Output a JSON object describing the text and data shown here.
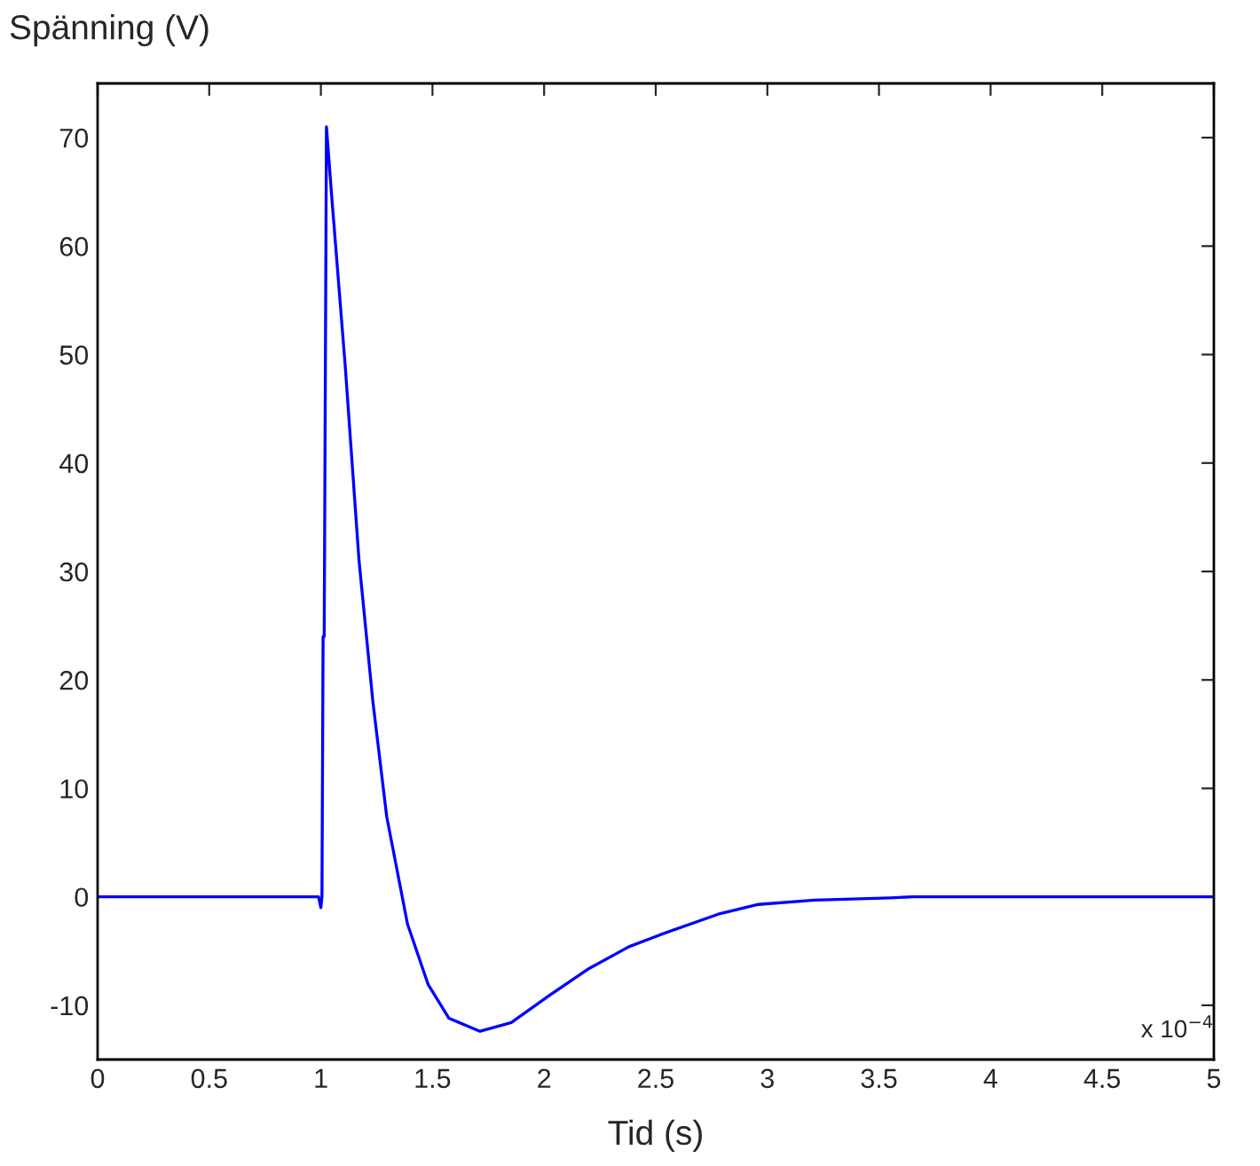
{
  "chart_data": {
    "type": "line",
    "ylabel": "Spänning (V)",
    "xlabel": "Tid (s)",
    "annotations": [
      "x 10$^{−4}$"
    ],
    "xlim": [
      0,
      5
    ],
    "ylim": [
      -15,
      75
    ],
    "xticks": [
      0,
      0.5,
      1,
      1.5,
      2,
      2.5,
      3,
      3.5,
      4,
      4.5,
      5
    ],
    "yticks": [
      -10,
      0,
      10,
      20,
      30,
      40,
      50,
      60,
      70
    ],
    "grid": false,
    "legend": false,
    "marker": "none",
    "line_style": "solid",
    "series": [
      {
        "color": "#0000ff",
        "x": [
          0,
          0.99,
          1.0,
          1.005,
          1.01,
          1.015,
          1.025,
          1.047,
          1.109,
          1.171,
          1.233,
          1.295,
          1.388,
          1.481,
          1.574,
          1.713,
          1.853,
          2.023,
          2.194,
          2.38,
          2.52,
          2.78,
          2.96,
          3.21,
          3.55,
          3.65,
          5
        ],
        "values": [
          0,
          0,
          -1,
          0,
          24,
          24,
          71,
          65,
          49,
          31,
          18,
          7.4,
          -2.5,
          -8.1,
          -11.2,
          -12.4,
          -11.6,
          -9.1,
          -6.7,
          -4.6,
          -3.5,
          -1.6,
          -0.7,
          -0.3,
          -0.1,
          0,
          0
        ]
      }
    ]
  }
}
